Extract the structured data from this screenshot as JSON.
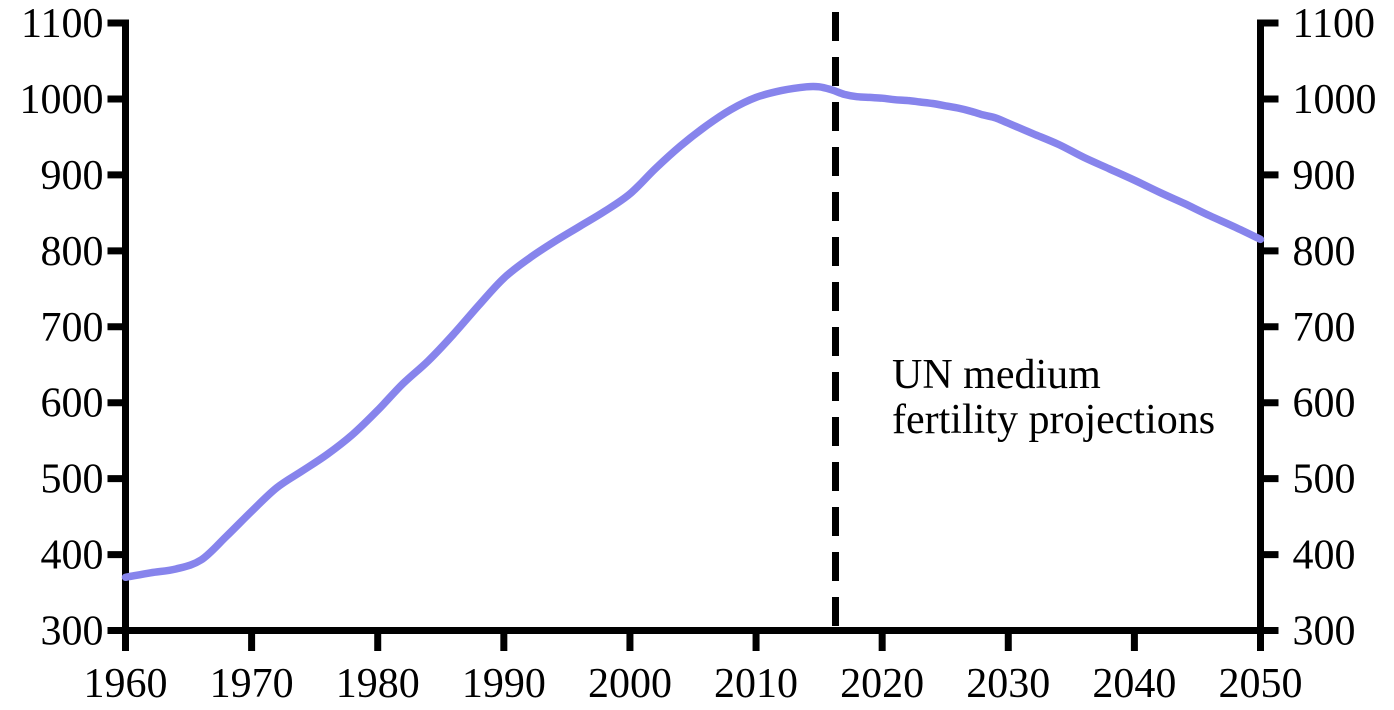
{
  "chart_data": {
    "type": "line",
    "title": "",
    "xlabel": "",
    "ylabel": "",
    "xlim": [
      1960,
      2050
    ],
    "ylim": [
      300,
      1100
    ],
    "grid": false,
    "x_ticks": [
      1960,
      1970,
      1980,
      1990,
      2000,
      2010,
      2020,
      2030,
      2040,
      2050
    ],
    "y_ticks_left": [
      300,
      400,
      500,
      600,
      700,
      800,
      900,
      1000,
      1100
    ],
    "y_ticks_right": [
      300,
      400,
      500,
      600,
      700,
      800,
      900,
      1000,
      1100
    ],
    "projection_divider_year": 2016.3,
    "annotation": {
      "line1": "UN medium",
      "line2": "fertility projections"
    },
    "series": [
      {
        "name": "population-line",
        "color": "#8784ec",
        "points": [
          [
            1960,
            370
          ],
          [
            1962,
            376
          ],
          [
            1964,
            381
          ],
          [
            1966,
            393
          ],
          [
            1968,
            424
          ],
          [
            1970,
            457
          ],
          [
            1972,
            488
          ],
          [
            1974,
            510
          ],
          [
            1976,
            532
          ],
          [
            1978,
            558
          ],
          [
            1980,
            590
          ],
          [
            1982,
            625
          ],
          [
            1984,
            655
          ],
          [
            1986,
            690
          ],
          [
            1988,
            728
          ],
          [
            1990,
            764
          ],
          [
            1992,
            790
          ],
          [
            1994,
            812
          ],
          [
            1996,
            832
          ],
          [
            1998,
            852
          ],
          [
            2000,
            875
          ],
          [
            2002,
            908
          ],
          [
            2004,
            938
          ],
          [
            2006,
            964
          ],
          [
            2008,
            986
          ],
          [
            2010,
            1002
          ],
          [
            2012,
            1011
          ],
          [
            2014,
            1016
          ],
          [
            2015,
            1016
          ],
          [
            2016,
            1012
          ],
          [
            2017,
            1006
          ],
          [
            2018,
            1003
          ],
          [
            2019,
            1002
          ],
          [
            2020,
            1001
          ],
          [
            2021,
            999
          ],
          [
            2022,
            998
          ],
          [
            2023,
            996
          ],
          [
            2024,
            994
          ],
          [
            2025,
            991
          ],
          [
            2026,
            988
          ],
          [
            2027,
            984
          ],
          [
            2028,
            979
          ],
          [
            2029,
            975
          ],
          [
            2030,
            968
          ],
          [
            2032,
            954
          ],
          [
            2034,
            940
          ],
          [
            2036,
            923
          ],
          [
            2038,
            908
          ],
          [
            2040,
            893
          ],
          [
            2042,
            877
          ],
          [
            2044,
            862
          ],
          [
            2046,
            846
          ],
          [
            2048,
            831
          ],
          [
            2050,
            815
          ]
        ]
      }
    ]
  },
  "colors": {
    "line": "#8784ec",
    "axis": "#000000",
    "text": "#000000",
    "divider": "#000000",
    "background": "#ffffff"
  }
}
